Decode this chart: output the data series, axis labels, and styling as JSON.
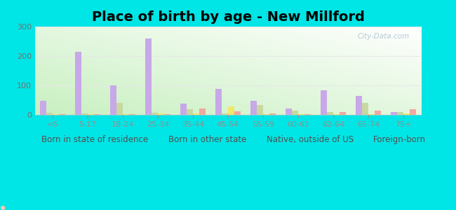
{
  "title": "Place of birth by age - New Millford",
  "categories": [
    "<5",
    "5-17",
    "18-24",
    "25-34",
    "35-44",
    "45-54",
    "55-59",
    "60-61",
    "62-64",
    "65-74",
    "75+"
  ],
  "series": {
    "Born in state of residence": [
      48,
      215,
      100,
      260,
      38,
      88,
      48,
      22,
      83,
      65,
      10
    ],
    "Born in other state": [
      7,
      4,
      40,
      7,
      18,
      5,
      33,
      13,
      10,
      40,
      10
    ],
    "Native, outside of US": [
      2,
      2,
      2,
      4,
      5,
      28,
      2,
      2,
      2,
      3,
      4
    ],
    "Foreign-born": [
      3,
      3,
      3,
      3,
      22,
      12,
      5,
      3,
      10,
      14,
      18
    ]
  },
  "colors": {
    "Born in state of residence": "#c8a8e8",
    "Born in other state": "#c8d8a0",
    "Native, outside of US": "#f0e868",
    "Foreign-born": "#f0a8a0"
  },
  "legend_colors": {
    "Born in state of residence": "#d8b8f0",
    "Born in other state": "#d8e8b0",
    "Native, outside of US": "#f8f080",
    "Foreign-born": "#f8c0b8"
  },
  "ylim": [
    0,
    300
  ],
  "yticks": [
    0,
    100,
    200,
    300
  ],
  "figure_background": "#00e5e5",
  "bar_width": 0.18,
  "title_fontsize": 14,
  "tick_fontsize": 8,
  "legend_fontsize": 8.5,
  "grid_color": "#e8e8e8",
  "watermark_text": "City-Data.com",
  "watermark_color": "#b8c8d8"
}
